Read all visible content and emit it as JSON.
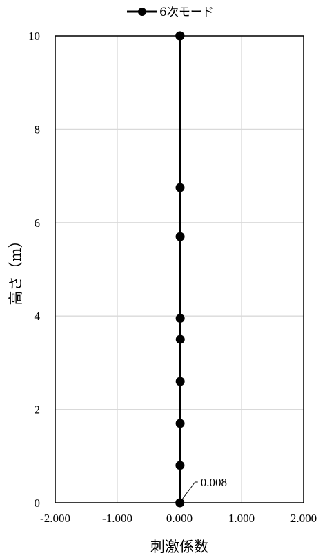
{
  "chart_data": {
    "type": "line",
    "title": "",
    "xlabel": "刺激係数",
    "ylabel": "高さ（m）",
    "xlim": [
      -2,
      2
    ],
    "ylim": [
      0,
      10
    ],
    "x_ticks": [
      -2,
      -1,
      0,
      1,
      2
    ],
    "x_tick_labels": [
      "-2.000",
      "-1.000",
      "0.000",
      "1.000",
      "2.000"
    ],
    "y_ticks": [
      0,
      2,
      4,
      6,
      8,
      10
    ],
    "y_tick_labels": [
      "0",
      "2",
      "4",
      "6",
      "8",
      "10"
    ],
    "grid": true,
    "legend_position": "top",
    "series": [
      {
        "name": "6次モード",
        "color": "#000000",
        "marker": "circle",
        "x": [
          0.008,
          0.01,
          0.012,
          0.013,
          0.014,
          0.013,
          0.012,
          0.011,
          0.01,
          0.008
        ],
        "y": [
          0,
          0.8,
          1.7,
          2.6,
          3.5,
          3.95,
          5.7,
          6.75,
          10,
          10
        ]
      }
    ],
    "annotations": [
      {
        "text": "0.008",
        "x": 0.008,
        "y": 0
      }
    ]
  }
}
